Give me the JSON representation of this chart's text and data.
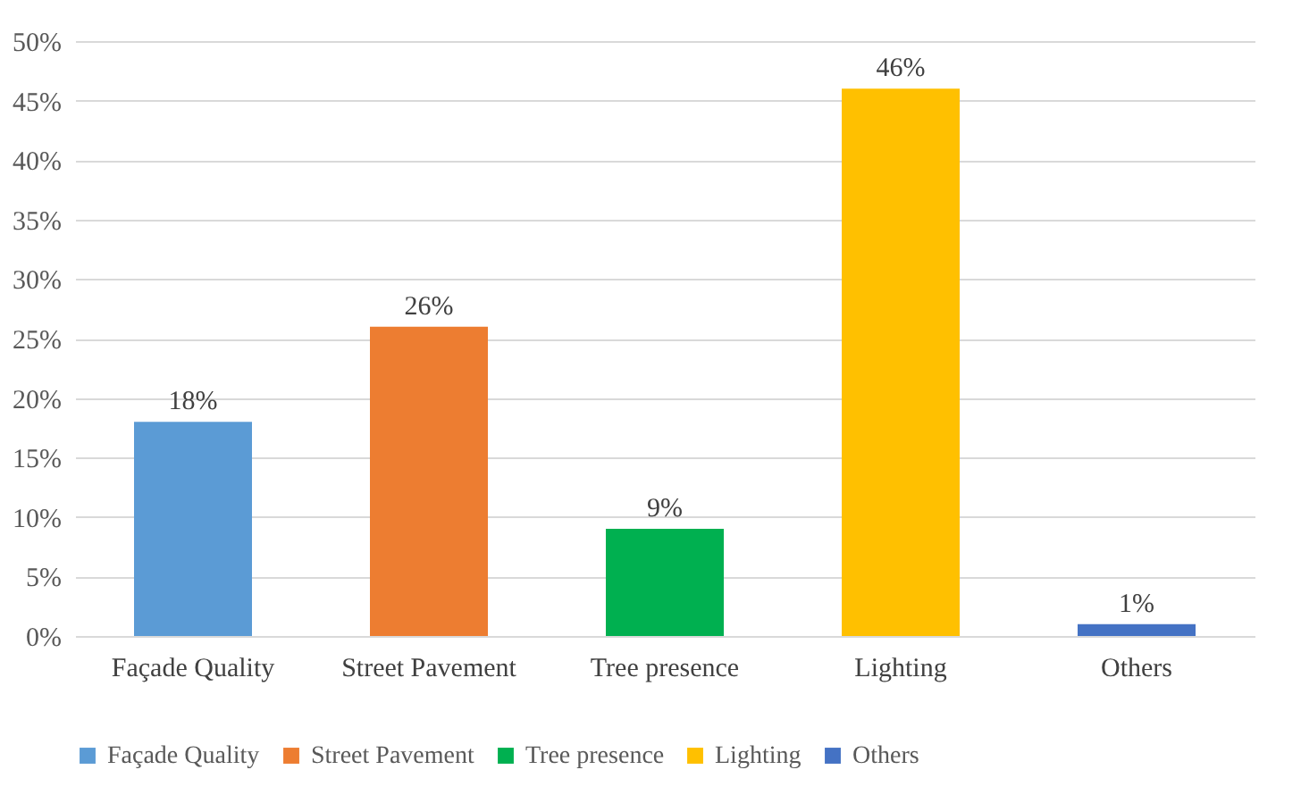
{
  "chart_data": {
    "type": "bar",
    "categories": [
      "Façade Quality",
      "Street Pavement",
      "Tree presence",
      "Lighting",
      "Others"
    ],
    "series": [
      {
        "name": "Façade Quality",
        "color": "#5b9bd5",
        "values": [
          18,
          null,
          null,
          null,
          null
        ]
      },
      {
        "name": "Street Pavement",
        "color": "#ed7d31",
        "values": [
          null,
          26,
          null,
          null,
          null
        ]
      },
      {
        "name": "Tree presence",
        "color": "#00b050",
        "values": [
          null,
          null,
          9,
          null,
          null
        ]
      },
      {
        "name": "Lighting",
        "color": "#ffc000",
        "values": [
          null,
          null,
          null,
          46,
          null
        ]
      },
      {
        "name": "Others",
        "color": "#4472c4",
        "values": [
          null,
          null,
          null,
          null,
          1
        ]
      }
    ],
    "value_labels": [
      "18%",
      "26%",
      "9%",
      "46%",
      "1%"
    ],
    "ylim": [
      0,
      50
    ],
    "yticks": [
      {
        "value": 0,
        "label": "0%"
      },
      {
        "value": 5,
        "label": "5%"
      },
      {
        "value": 10,
        "label": "10%"
      },
      {
        "value": 15,
        "label": "15%"
      },
      {
        "value": 20,
        "label": "20%"
      },
      {
        "value": 25,
        "label": "25%"
      },
      {
        "value": 30,
        "label": "30%"
      },
      {
        "value": 35,
        "label": "35%"
      },
      {
        "value": 40,
        "label": "40%"
      },
      {
        "value": 45,
        "label": "45%"
      },
      {
        "value": 50,
        "label": "50%"
      }
    ],
    "grid": "y",
    "legend": "bottom"
  }
}
